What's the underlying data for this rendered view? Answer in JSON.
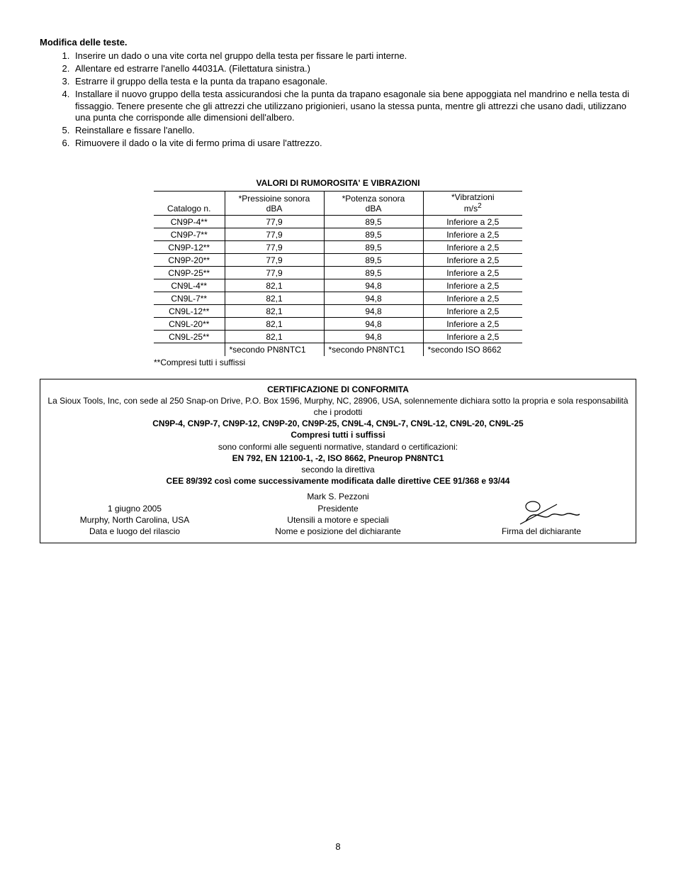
{
  "section": {
    "title": "Modifica delle teste.",
    "items": [
      "Inserire un dado o una vite corta nel gruppo della testa per fissare le parti interne.",
      "Allentare ed estrarre l'anello 44031A. (Filettatura sinistra.)",
      "Estrarre il gruppo della testa e la punta da trapano esagonale.",
      "Installare il nuovo gruppo della testa assicurandosi che la punta da trapano esagonale sia bene appoggiata nel mandrino e nella testa di fissaggio. Tenere presente che gli attrezzi che utilizzano prigionieri, usano la stessa punta, mentre gli attrezzi che usano dadi, utilizzano una punta che corrisponde alle dimensioni dell'albero.",
      "Reinstallare e fissare l'anello.",
      "Rimuovere il dado o la vite di fermo prima di usare l'attrezzo."
    ]
  },
  "table": {
    "title": "VALORI DI RUMOROSITA' E VIBRAZIONI",
    "columns": {
      "c1_line1": "",
      "c1_line2": "Catalogo n.",
      "c2_line1": "*Pressioine sonora",
      "c2_line2": "dBA",
      "c3_line1": "*Potenza sonora",
      "c3_line2": "dBA",
      "c4_line1": "*Vibratzioni",
      "c4_line2": "m/s",
      "c4_sup": "2"
    },
    "rows": [
      {
        "c": "CN9P-4**",
        "p": "77,9",
        "pw": "89,5",
        "v": "Inferiore a 2,5"
      },
      {
        "c": "CN9P-7**",
        "p": "77,9",
        "pw": "89,5",
        "v": "Inferiore a 2,5"
      },
      {
        "c": "CN9P-12**",
        "p": "77,9",
        "pw": "89,5",
        "v": "Inferiore a 2,5"
      },
      {
        "c": "CN9P-20**",
        "p": "77,9",
        "pw": "89,5",
        "v": "Inferiore a 2,5"
      },
      {
        "c": "CN9P-25**",
        "p": "77,9",
        "pw": "89,5",
        "v": "Inferiore a 2,5"
      },
      {
        "c": "CN9L-4**",
        "p": "82,1",
        "pw": "94,8",
        "v": "Inferiore a 2,5"
      },
      {
        "c": "CN9L-7**",
        "p": "82,1",
        "pw": "94,8",
        "v": "Inferiore a 2,5"
      },
      {
        "c": "CN9L-12**",
        "p": "82,1",
        "pw": "94,8",
        "v": "Inferiore a 2,5"
      },
      {
        "c": "CN9L-20**",
        "p": "82,1",
        "pw": "94,8",
        "v": "Inferiore a 2,5"
      },
      {
        "c": "CN9L-25**",
        "p": "82,1",
        "pw": "94,8",
        "v": "Inferiore a 2,5"
      }
    ],
    "footer": {
      "c1": "",
      "c2": "*secondo PN8NTC1",
      "c3": "*secondo PN8NTC1",
      "c4": "*secondo ISO 8662"
    },
    "suffix_note": "**Compresi tutti i suffissi",
    "col_widths": [
      "100px",
      "140px",
      "140px",
      "140px"
    ],
    "border_color": "#000000"
  },
  "cert": {
    "title": "CERTIFICAZIONE DI CONFORMITA",
    "line1": "La Sioux Tools, Inc, con sede al 250 Snap-on Drive, P.O. Box 1596, Murphy, NC, 28906, USA, solennemente dichiara sotto la propria e sola responsabilità che i prodotti",
    "products": "CN9P-4, CN9P-7, CN9P-12, CN9P-20, CN9P-25, CN9L-4, CN9L-7, CN9L-12, CN9L-20, CN9L-25",
    "suffix_line": "Compresi tutti i suffissi",
    "line2": "sono conformi alle seguenti normative, standard  o certificazioni:",
    "standards": "EN 792, EN 12100-1, -2,  ISO 8662, Pneurop PN8NTC1",
    "line3": "secondo la direttiva",
    "directive": "CEE 89/392 così come successivamente modificata dalle direttive CEE 91/368 e 93/44",
    "left": {
      "l1": "1 giugno 2005",
      "l2": "Murphy, North Carolina, USA",
      "l3": "Data e luogo del rilascio"
    },
    "mid": {
      "l1": "Mark S. Pezzoni",
      "l2": "Presidente",
      "l3": "Utensili a motore e speciali",
      "l4": "Nome e posizione del dichiarante"
    },
    "right": {
      "l1": "Firma del dichiarante"
    }
  },
  "page_number": "8"
}
